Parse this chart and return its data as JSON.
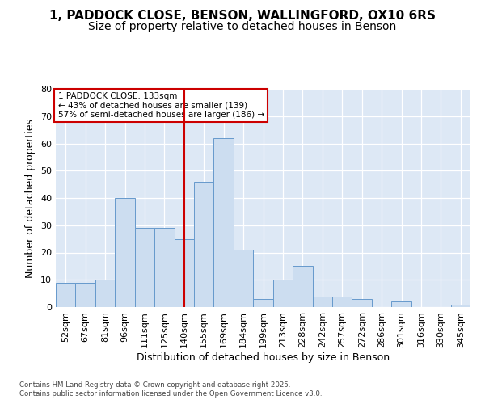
{
  "title1": "1, PADDOCK CLOSE, BENSON, WALLINGFORD, OX10 6RS",
  "title2": "Size of property relative to detached houses in Benson",
  "xlabel": "Distribution of detached houses by size in Benson",
  "ylabel": "Number of detached properties",
  "footnote1": "Contains HM Land Registry data © Crown copyright and database right 2025.",
  "footnote2": "Contains public sector information licensed under the Open Government Licence v3.0.",
  "bar_labels": [
    "52sqm",
    "67sqm",
    "81sqm",
    "96sqm",
    "111sqm",
    "125sqm",
    "140sqm",
    "155sqm",
    "169sqm",
    "184sqm",
    "199sqm",
    "213sqm",
    "228sqm",
    "242sqm",
    "257sqm",
    "272sqm",
    "286sqm",
    "301sqm",
    "316sqm",
    "330sqm",
    "345sqm"
  ],
  "bar_values": [
    9,
    9,
    10,
    40,
    29,
    29,
    25,
    46,
    62,
    21,
    3,
    10,
    15,
    4,
    4,
    3,
    0,
    2,
    0,
    0,
    1
  ],
  "bar_color": "#ccddf0",
  "bar_edgecolor": "#6699cc",
  "vline_x": 6,
  "vline_color": "#cc0000",
  "annotation_text": "1 PADDOCK CLOSE: 133sqm\n← 43% of detached houses are smaller (139)\n57% of semi-detached houses are larger (186) →",
  "annotation_box_color": "#ffffff",
  "annotation_box_edgecolor": "#cc0000",
  "ylim": [
    0,
    80
  ],
  "yticks": [
    0,
    10,
    20,
    30,
    40,
    50,
    60,
    70,
    80
  ],
  "bg_color": "#ffffff",
  "plot_bg_color": "#dde8f5",
  "grid_color": "#ffffff",
  "title_fontsize": 11,
  "subtitle_fontsize": 10,
  "axis_label_fontsize": 9,
  "tick_fontsize": 8
}
